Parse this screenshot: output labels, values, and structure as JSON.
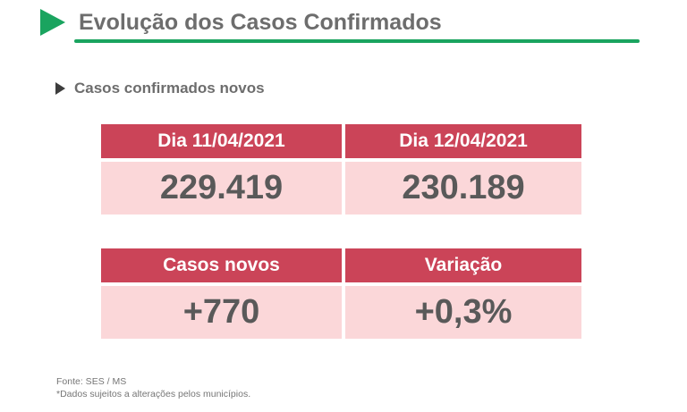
{
  "header": {
    "title": "Evolução dos Casos Confirmados"
  },
  "subtitle": {
    "label": "Casos confirmados novos"
  },
  "tables": {
    "comparison": {
      "columns": [
        {
          "header": "Dia 11/04/2021",
          "value": "229.419"
        },
        {
          "header": "Dia 12/04/2021",
          "value": "230.189"
        }
      ]
    },
    "variation": {
      "columns": [
        {
          "header": "Casos novos",
          "value": "+770"
        },
        {
          "header": "Variação",
          "value": "+0,3%"
        }
      ]
    }
  },
  "footer": {
    "source": "Fonte: SES / MS",
    "note": "*Dados sujeitos a alterações pelos municípios."
  },
  "icons": {
    "title_arrow": "green-right-triangle",
    "subtitle_arrow": "dark-right-triangle"
  },
  "colors": {
    "accent_green": "#1aa45f",
    "header_red": "#cb4458",
    "cell_pink": "#fbd7d9",
    "title_gray": "#6d6d6d",
    "value_gray": "#595959",
    "footer_gray": "#767676"
  }
}
